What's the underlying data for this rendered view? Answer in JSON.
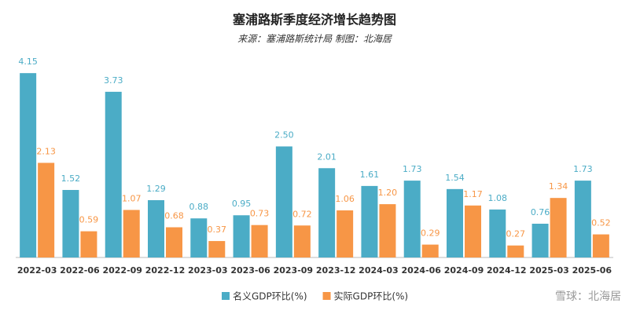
{
  "chart_data": {
    "type": "bar",
    "title": "塞浦路斯季度经济增长趋势图",
    "subtitle": "来源：塞浦路斯统计局 制图：北海居",
    "watermark": "雪球：北海居",
    "categories": [
      "2022-03",
      "2022-06",
      "2022-09",
      "2022-12",
      "2023-03",
      "2023-06",
      "2023-09",
      "2023-12",
      "2024-03",
      "2024-06",
      "2024-09",
      "2024-12",
      "2025-03",
      "2025-06"
    ],
    "series": [
      {
        "name": "名义GDP环比(%)",
        "color": "#4bacc6",
        "values": [
          4.15,
          1.52,
          3.73,
          1.29,
          0.88,
          0.95,
          2.5,
          2.01,
          1.61,
          1.73,
          1.54,
          1.08,
          0.76,
          1.73
        ],
        "value_labels": [
          "4.15",
          "1.52",
          "3.73",
          "1.29",
          "0.88",
          "0.95",
          "2.50",
          "2.01",
          "1.61",
          "1.73",
          "1.54",
          "1.08",
          "0.76",
          "1.73"
        ]
      },
      {
        "name": "实际GDP环比(%)",
        "color": "#f79646",
        "values": [
          2.13,
          0.59,
          1.07,
          0.68,
          0.37,
          0.73,
          0.72,
          1.06,
          1.2,
          0.29,
          1.17,
          0.27,
          1.34,
          0.52
        ],
        "value_labels": [
          "2.13",
          "0.59",
          "1.07",
          "0.68",
          "0.37",
          "0.73",
          "0.72",
          "1.06",
          "1.20",
          "0.29",
          "1.17",
          "0.27",
          "1.34",
          "0.52"
        ]
      }
    ],
    "ylim": [
      0,
      4.4
    ],
    "legend": "bottom"
  }
}
